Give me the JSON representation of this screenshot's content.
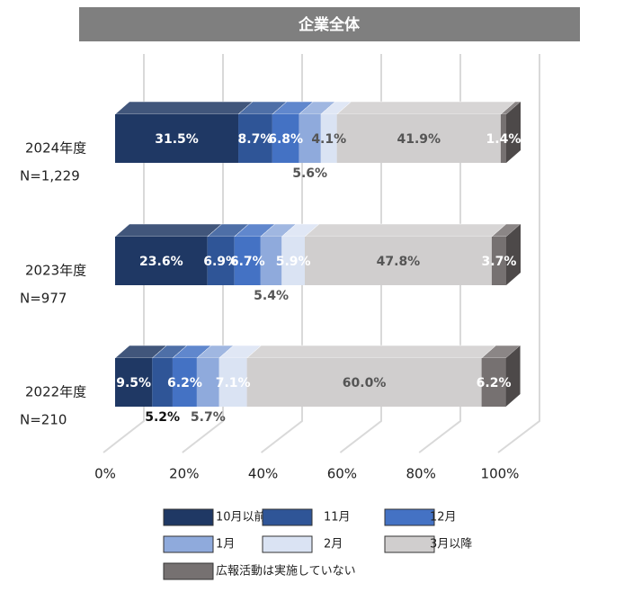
{
  "chart_data": {
    "type": "bar3d_stacked_horizontal",
    "title": "企業全体",
    "categories": [
      "2024年度",
      "2023年度",
      "2022年度"
    ],
    "category_notes": [
      "N=1,229",
      "N=977",
      "N=210"
    ],
    "series": [
      {
        "name": "10月以前",
        "color": "#1f3864",
        "values": [
          31.5,
          23.6,
          9.5
        ],
        "value_labels": [
          "31.5%",
          "23.6%",
          "9.5%"
        ]
      },
      {
        "name": "11月",
        "color": "#2f5597",
        "values": [
          8.7,
          6.9,
          5.2
        ],
        "value_labels": [
          "8.7%",
          "6.9%",
          "5.2%"
        ]
      },
      {
        "name": "12月",
        "color": "#4472c4",
        "values": [
          6.8,
          6.7,
          6.2
        ],
        "value_labels": [
          "6.8%",
          "6.7%",
          "6.2%"
        ]
      },
      {
        "name": "1月",
        "color": "#8faadc",
        "values": [
          5.6,
          5.4,
          5.7
        ],
        "value_labels": [
          "5.6%",
          "5.4%",
          "5.7%"
        ]
      },
      {
        "name": "2月",
        "color": "#dae3f3",
        "values": [
          4.1,
          5.9,
          7.1
        ],
        "value_labels": [
          "4.1%",
          "5.9%",
          "7.1%"
        ]
      },
      {
        "name": "3月以降",
        "color": "#d0cece",
        "values": [
          41.9,
          47.8,
          60.0
        ],
        "value_labels": [
          "41.9%",
          "47.8%",
          "60.0%"
        ]
      },
      {
        "name": "広報活動は実施していない",
        "color": "#767171",
        "values": [
          1.4,
          3.7,
          6.2
        ],
        "value_labels": [
          "1.4%",
          "3.7%",
          "6.2%"
        ]
      }
    ],
    "xlim": [
      0,
      100
    ],
    "xticks": [
      {
        "value": 0,
        "label": "0%"
      },
      {
        "value": 20,
        "label": "20%"
      },
      {
        "value": 40,
        "label": "40%"
      },
      {
        "value": 60,
        "label": "60%"
      },
      {
        "value": 80,
        "label": "80%"
      },
      {
        "value": 100,
        "label": "100%"
      }
    ],
    "grid": true
  }
}
